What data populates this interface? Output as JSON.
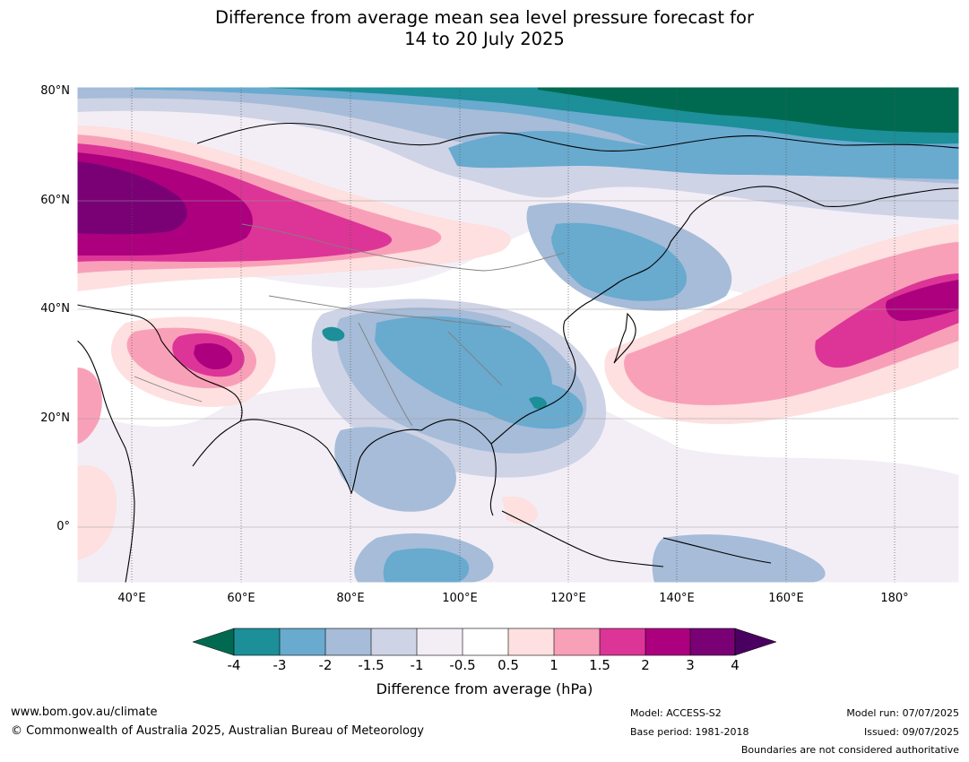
{
  "title_line1": "Difference from average mean sea level pressure forecast for",
  "title_line2": "14 to 20 July 2025",
  "lat_labels": [
    "80°N",
    "60°N",
    "40°N",
    "20°N",
    "0°"
  ],
  "lon_labels": [
    "40°E",
    "60°E",
    "80°E",
    "100°E",
    "120°E",
    "140°E",
    "160°E",
    "180°"
  ],
  "colorbar": {
    "title": "Difference from average (hPa)",
    "tick_labels": [
      "-4",
      "-3",
      "-2",
      "-1.5",
      "-1",
      "-0.5",
      "0.5",
      "1",
      "1.5",
      "2",
      "3",
      "4"
    ],
    "colors": [
      "#006a50",
      "#1c8f99",
      "#69aacf",
      "#a6bcd8",
      "#cfd3e6",
      "#f3eef6",
      "#ffffff",
      "#fde0df",
      "#f9a0b9",
      "#dc3597",
      "#ac007f",
      "#7a0076",
      "#4a0060"
    ]
  },
  "footer": {
    "website": "www.bom.gov.au/climate",
    "copyright": "© Commonwealth of Australia 2025, Australian Bureau of Meteorology",
    "model": "Model: ACCESS-S2",
    "base_period": "Base period: 1981-2018",
    "model_run": "Model run: 07/07/2025",
    "issued": "Issued: 09/07/2025",
    "disclaimer": "Boundaries are not considered authoritative"
  }
}
